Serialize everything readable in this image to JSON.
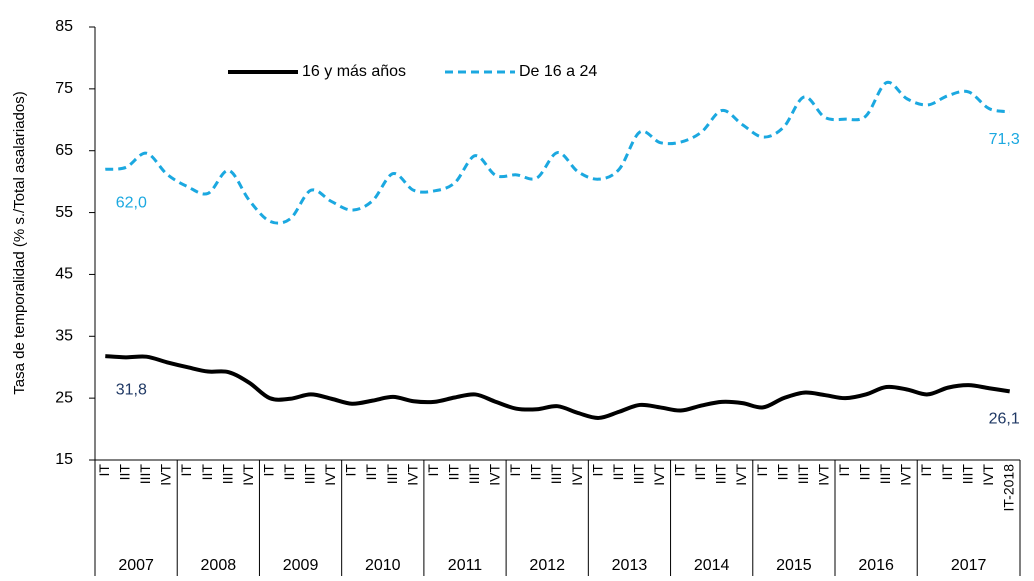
{
  "chart_data": {
    "type": "line",
    "y_label": "Tasa de temporalidad (% s./Total asalariados)",
    "categories": [
      "IT",
      "IIT",
      "IIIT",
      "IVT",
      "IT",
      "IIT",
      "IIIT",
      "IVT",
      "IT",
      "IIT",
      "IIIT",
      "IVT",
      "IT",
      "IIT",
      "IIIT",
      "IVT",
      "IT",
      "IIT",
      "IIIT",
      "IVT",
      "IT",
      "IIT",
      "IIIT",
      "IVT",
      "IT",
      "IIT",
      "IIIT",
      "IVT",
      "IT",
      "IIT",
      "IIIT",
      "IVT",
      "IT",
      "IIT",
      "IIIT",
      "IVT",
      "IT",
      "IIT",
      "IIIT",
      "IVT",
      "IT",
      "IIT",
      "IIIT",
      "IVT",
      "IT-2018"
    ],
    "groups": [
      "2007",
      "2008",
      "2009",
      "2010",
      "2011",
      "2012",
      "2013",
      "2014",
      "2015",
      "2016",
      "2017"
    ],
    "series": [
      {
        "name": "16 y más años",
        "color": "#000000",
        "dash": false,
        "label_color": "#1f3864",
        "values": [
          31.8,
          31.6,
          31.7,
          30.8,
          30.0,
          29.3,
          29.2,
          27.5,
          25.0,
          24.9,
          25.6,
          24.9,
          24.1,
          24.6,
          25.2,
          24.5,
          24.4,
          25.1,
          25.6,
          24.4,
          23.3,
          23.2,
          23.7,
          22.6,
          21.8,
          22.8,
          23.9,
          23.5,
          23.0,
          23.8,
          24.4,
          24.2,
          23.5,
          25.0,
          25.9,
          25.5,
          25.0,
          25.6,
          26.8,
          26.4,
          25.6,
          26.7,
          27.1,
          26.6,
          26.1
        ],
        "value_labels": [
          "31,8",
          null,
          null,
          null,
          null,
          null,
          null,
          null,
          null,
          null,
          null,
          null,
          null,
          null,
          null,
          null,
          null,
          null,
          null,
          null,
          null,
          null,
          null,
          null,
          null,
          null,
          null,
          null,
          null,
          null,
          null,
          null,
          null,
          null,
          null,
          null,
          null,
          null,
          null,
          null,
          null,
          null,
          null,
          null,
          "26,1"
        ]
      },
      {
        "name": "De 16 a 24",
        "color": "#1ba8e0",
        "dash": true,
        "label_color": "#1ba8e0",
        "values": [
          62.0,
          62.3,
          64.6,
          61.2,
          59.2,
          58.1,
          61.8,
          57.0,
          53.6,
          54.0,
          58.6,
          56.8,
          55.4,
          56.9,
          61.3,
          58.6,
          58.5,
          59.8,
          64.2,
          61.0,
          61.1,
          60.6,
          64.7,
          61.6,
          60.4,
          62.0,
          68.0,
          66.3,
          66.4,
          68.0,
          71.5,
          69.2,
          67.2,
          68.8,
          73.7,
          70.4,
          70.1,
          70.6,
          76.0,
          73.4,
          72.4,
          73.9,
          74.5,
          71.8,
          71.3
        ],
        "value_labels": [
          "62,0",
          null,
          null,
          null,
          null,
          null,
          null,
          null,
          null,
          null,
          null,
          null,
          null,
          null,
          null,
          null,
          null,
          null,
          null,
          null,
          null,
          null,
          null,
          null,
          null,
          null,
          null,
          null,
          null,
          null,
          null,
          null,
          null,
          null,
          null,
          null,
          null,
          null,
          null,
          null,
          null,
          null,
          null,
          null,
          "71,3"
        ]
      }
    ],
    "ylim": [
      15,
      85
    ],
    "yticks": [
      15,
      25,
      35,
      45,
      55,
      65,
      75,
      85
    ],
    "grid": false,
    "legend": "top"
  }
}
